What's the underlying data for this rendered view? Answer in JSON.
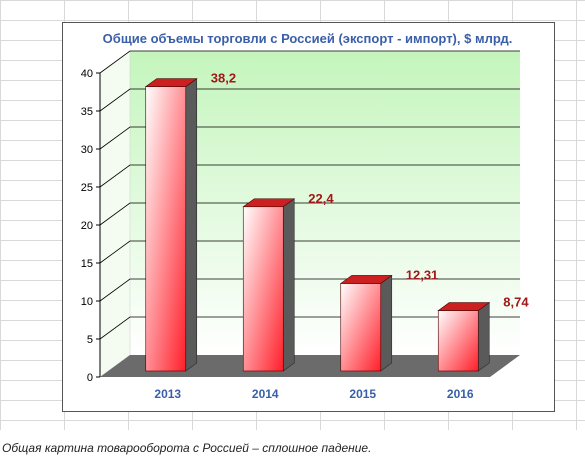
{
  "chart_data": {
    "type": "bar",
    "title": "Общие объемы торговли с Россией (экспорт - импорт), $ млрд.",
    "categories": [
      "2013",
      "2014",
      "2015",
      "2016"
    ],
    "values": [
      38.2,
      22.4,
      12.31,
      8.74
    ],
    "value_labels": [
      "38,2",
      "22,4",
      "12,31",
      "8,74"
    ],
    "yticks": [
      "0",
      "5",
      "10",
      "15",
      "20",
      "25",
      "30",
      "35",
      "40"
    ],
    "ylim": [
      0,
      40
    ],
    "grid": true,
    "legend": "none",
    "colors": {
      "bar_light": "#ffffff",
      "bar_dark": "#ff1f2a",
      "bar_side": "#5a5a5a",
      "bar_top": "#cc2020",
      "wall_top": "#c4f5bc",
      "floor": "#6b6b6b",
      "title": "#3a5fa8",
      "value_label": "#a01818",
      "category_label": "#3a5fa8"
    }
  },
  "caption": "Общая картина товарооборота с Россией  – сплошное падение."
}
